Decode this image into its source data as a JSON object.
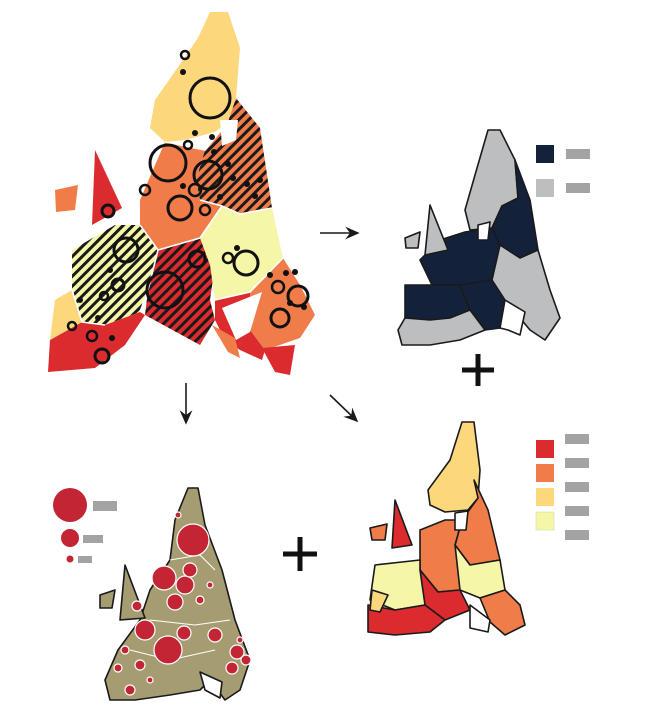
{
  "colors": {
    "navy": "#13213a",
    "gray": "#bdbec0",
    "placeholder": "#a3a3a3",
    "red": "#dc2b2f",
    "orange": "#f07c4a",
    "gold": "#fcd77b",
    "cream": "#f6f6a9",
    "symbol_red": "#c42534",
    "basemap": "#a69c72",
    "outline": "#1a1a1a"
  },
  "icons": {
    "plus": "plus-icon",
    "arrow": "arrow-icon"
  },
  "legends": {
    "binary_entries": 2,
    "choropleth_entries": 4,
    "symbol_sizes": [
      "large",
      "medium",
      "small"
    ]
  }
}
